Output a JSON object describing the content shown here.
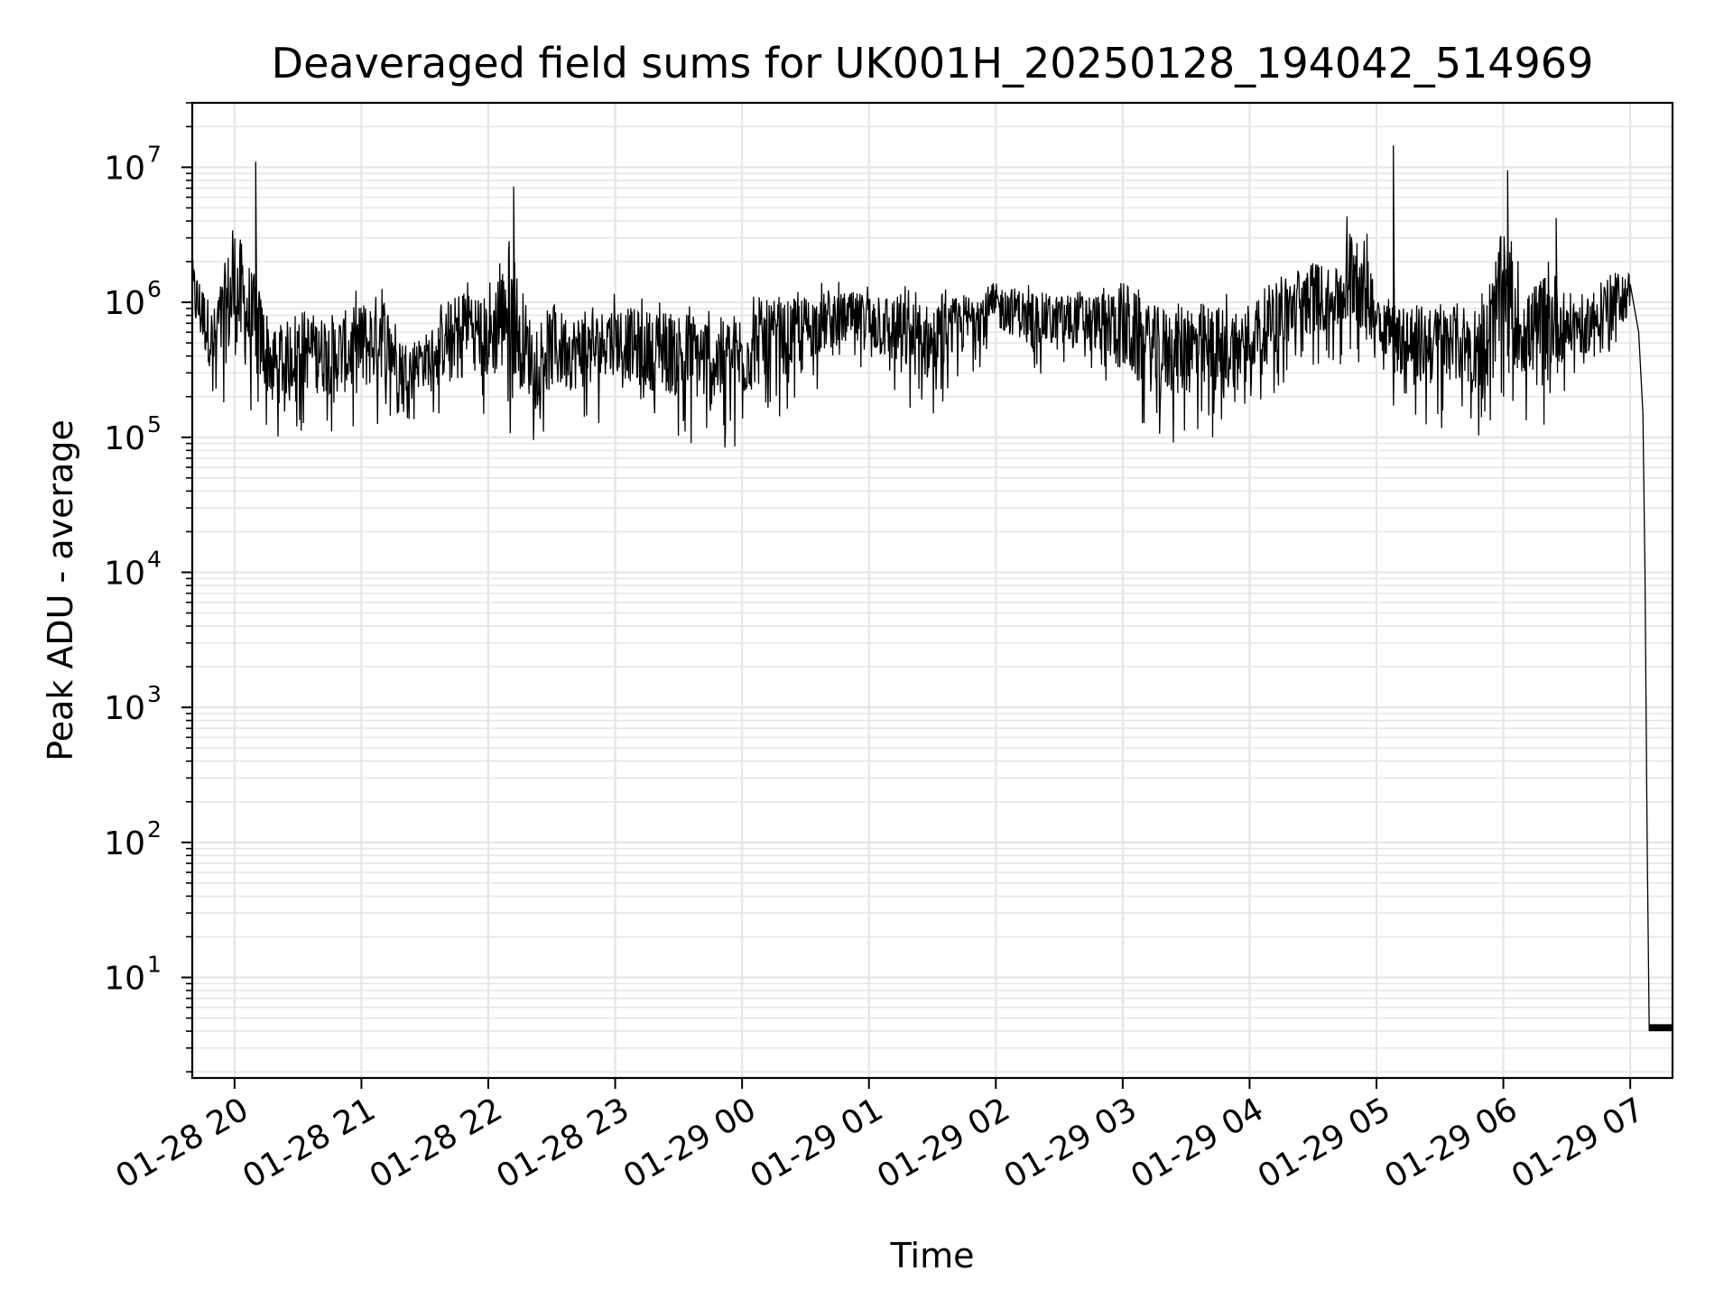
{
  "chart_data": {
    "type": "line",
    "title": "Deaveraged field sums for UK001H_20250128_194042_514969",
    "xlabel": "Time",
    "ylabel": "Peak ADU - average",
    "yscale": "log",
    "ylim": [
      1.8,
      30000000
    ],
    "xlim": [
      "2025-01-28 19:40",
      "2025-01-29 07:20"
    ],
    "grid": true,
    "line_color": "#000000",
    "grid_color": "#e6e6e6",
    "x_ticks": [
      "01-28 20",
      "01-28 21",
      "01-28 22",
      "01-28 23",
      "01-29 00",
      "01-29 01",
      "01-29 02",
      "01-29 03",
      "01-29 04",
      "01-29 05",
      "01-29 06",
      "01-29 07"
    ],
    "y_ticks": [
      {
        "base": "10",
        "exp": "1",
        "value": 10
      },
      {
        "base": "10",
        "exp": "2",
        "value": 100
      },
      {
        "base": "10",
        "exp": "3",
        "value": 1000
      },
      {
        "base": "10",
        "exp": "4",
        "value": 10000
      },
      {
        "base": "10",
        "exp": "5",
        "value": 100000
      },
      {
        "base": "10",
        "exp": "6",
        "value": 1000000
      },
      {
        "base": "10",
        "exp": "7",
        "value": 10000000
      }
    ],
    "series": [
      {
        "x": [
          "2025-01-28 19:40",
          "2025-01-28 19:50",
          "2025-01-28 20:00",
          "2025-01-28 20:10",
          "2025-01-28 20:20",
          "2025-01-28 20:30",
          "2025-01-28 20:40",
          "2025-01-28 20:50",
          "2025-01-28 21:00",
          "2025-01-28 21:10",
          "2025-01-28 21:20",
          "2025-01-28 21:30",
          "2025-01-28 21:40",
          "2025-01-28 21:50",
          "2025-01-28 22:00",
          "2025-01-28 22:10",
          "2025-01-28 22:20",
          "2025-01-28 22:30",
          "2025-01-28 22:40",
          "2025-01-28 22:50",
          "2025-01-28 23:00",
          "2025-01-28 23:10",
          "2025-01-28 23:20",
          "2025-01-28 23:30",
          "2025-01-28 23:40",
          "2025-01-28 23:50",
          "2025-01-29 00:00",
          "2025-01-29 00:10",
          "2025-01-29 00:20",
          "2025-01-29 00:30",
          "2025-01-29 00:40",
          "2025-01-29 00:50",
          "2025-01-29 01:00",
          "2025-01-29 01:10",
          "2025-01-29 01:20",
          "2025-01-29 01:30",
          "2025-01-29 01:40",
          "2025-01-29 01:50",
          "2025-01-29 02:00",
          "2025-01-29 02:10",
          "2025-01-29 02:20",
          "2025-01-29 02:30",
          "2025-01-29 02:40",
          "2025-01-29 02:50",
          "2025-01-29 03:00",
          "2025-01-29 03:10",
          "2025-01-29 03:20",
          "2025-01-29 03:30",
          "2025-01-29 03:40",
          "2025-01-29 03:50",
          "2025-01-29 04:00",
          "2025-01-29 04:10",
          "2025-01-29 04:20",
          "2025-01-29 04:30",
          "2025-01-29 04:40",
          "2025-01-29 04:50",
          "2025-01-29 05:00",
          "2025-01-29 05:10",
          "2025-01-29 05:20",
          "2025-01-29 05:30",
          "2025-01-29 05:40",
          "2025-01-29 05:50",
          "2025-01-29 06:00",
          "2025-01-29 06:10",
          "2025-01-29 06:20",
          "2025-01-29 06:30",
          "2025-01-29 06:40",
          "2025-01-29 06:50",
          "2025-01-29 07:00",
          "2025-01-29 07:05",
          "2025-01-29 07:10",
          "2025-01-29 07:15",
          "2025-01-29 07:20"
        ],
        "low": [
          400000,
          150000,
          120000,
          100000,
          90000,
          110000,
          100000,
          100000,
          90000,
          120000,
          130000,
          140000,
          150000,
          200000,
          120000,
          100000,
          90000,
          100000,
          110000,
          120000,
          150000,
          120000,
          100000,
          90000,
          80000,
          70000,
          80000,
          120000,
          150000,
          200000,
          250000,
          300000,
          250000,
          180000,
          150000,
          120000,
          200000,
          300000,
          400000,
          350000,
          300000,
          250000,
          300000,
          250000,
          120000,
          100000,
          90000,
          85000,
          90000,
          100000,
          150000,
          200000,
          250000,
          300000,
          350000,
          200000,
          300000,
          150000,
          120000,
          110000,
          120000,
          100000,
          150000,
          130000,
          120000,
          200000,
          250000,
          400000,
          500000,
          300000,
          50000,
          4,
          4
        ],
        "high": [
          3500000,
          1500000,
          11000000,
          3500000,
          1000000,
          1800000,
          1500000,
          1600000,
          2000000,
          2500000,
          800000,
          900000,
          1500000,
          2800000,
          2000000,
          7200000,
          1500000,
          1800000,
          1500000,
          1500000,
          1800000,
          1600000,
          1700000,
          1800000,
          1700000,
          1600000,
          1800000,
          2000000,
          1800000,
          1900000,
          1900000,
          1800000,
          1900000,
          2100000,
          1800000,
          1800000,
          1800000,
          1900000,
          2000000,
          1900000,
          1800000,
          1800000,
          1900000,
          1800000,
          3200000,
          2000000,
          1800000,
          2200000,
          2000000,
          1800000,
          1800000,
          2500000,
          3000000,
          4000000,
          2500000,
          14500000,
          2000000,
          1800000,
          1800000,
          1800000,
          1900000,
          1900000,
          9500000,
          2000000,
          4200000,
          2000000,
          1800000,
          2500000,
          2500000,
          1000000,
          200000,
          4.5,
          4.5
        ],
        "spikes": [
          {
            "x": "2025-01-28 20:10",
            "y": 11000000
          },
          {
            "x": "2025-01-28 22:12",
            "y": 7200000
          },
          {
            "x": "2025-01-29 05:08",
            "y": 14500000
          },
          {
            "x": "2025-01-29 06:02",
            "y": 9500000
          },
          {
            "x": "2025-01-29 06:25",
            "y": 4200000
          }
        ]
      }
    ]
  }
}
